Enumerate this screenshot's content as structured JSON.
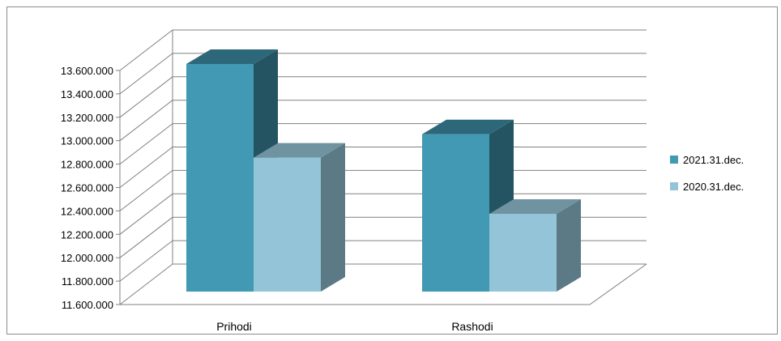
{
  "chart_data": {
    "type": "bar",
    "style": "3d-clustered-column",
    "title": "",
    "xlabel": "",
    "ylabel": "",
    "categories": [
      "Prihodi",
      "Rashodi"
    ],
    "ylim": [
      11600000,
      13600000
    ],
    "ytick_step": 200000,
    "ytick_labels": [
      "11.600.000",
      "11.800.000",
      "12.000.000",
      "12.200.000",
      "12.400.000",
      "12.600.000",
      "12.800.000",
      "13.000.000",
      "13.200.000",
      "13.400.000",
      "13.600.000"
    ],
    "grid": true,
    "legend_position": "right",
    "series": [
      {
        "name": "2021.31.dec.",
        "values": [
          13600000,
          13000000
        ],
        "color": "#4299b3"
      },
      {
        "name": "2020.31.dec.",
        "values": [
          12800000,
          12320000
        ],
        "color": "#94c4d7"
      }
    ]
  }
}
